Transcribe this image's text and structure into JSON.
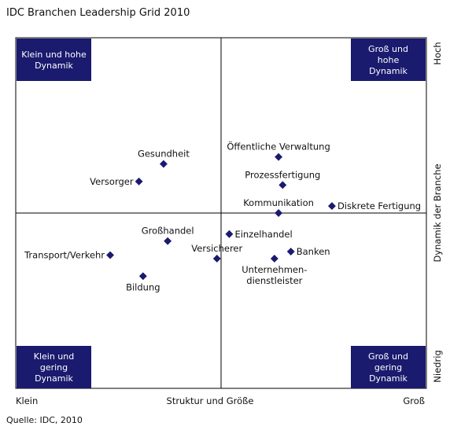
{
  "title": "IDC Branchen Leadership Grid 2010",
  "source": "Quelle: IDC, 2010",
  "colors": {
    "corner_fill": "#1a1a6e",
    "marker": "#1a1a6e",
    "frame": "#000000"
  },
  "chart_data": {
    "type": "scatter",
    "title": "IDC Branchen Leadership Grid 2010",
    "xlabel": "Struktur und Größe",
    "ylabel": "Dynamik der Branche",
    "x_ticks": {
      "min": "Klein",
      "max": "Groß"
    },
    "y_ticks": {
      "min": "Niedrig",
      "max": "Hoch"
    },
    "xlim": [
      0,
      100
    ],
    "ylim": [
      0,
      100
    ],
    "grid": false,
    "quadrant_labels": {
      "top_left": [
        "Klein und hohe",
        "Dynamik"
      ],
      "top_right": [
        "Groß und",
        "hohe",
        "Dynamik"
      ],
      "bottom_left": [
        "Klein und",
        "gering",
        "Dynamik"
      ],
      "bottom_right": [
        "Groß und",
        "gering",
        "Dynamik"
      ]
    },
    "points": [
      {
        "label": [
          "Gesundheit"
        ],
        "x": 36,
        "y": 64,
        "label_pos": "above"
      },
      {
        "label": [
          "Versorger"
        ],
        "x": 30,
        "y": 59,
        "label_pos": "left"
      },
      {
        "label": [
          "Öffentliche Verwaltung"
        ],
        "x": 64,
        "y": 66,
        "label_pos": "above"
      },
      {
        "label": [
          "Prozessfertigung"
        ],
        "x": 65,
        "y": 58,
        "label_pos": "above"
      },
      {
        "label": [
          "Kommunikation"
        ],
        "x": 64,
        "y": 50,
        "label_pos": "above"
      },
      {
        "label": [
          "Diskrete Fertigung"
        ],
        "x": 77,
        "y": 52,
        "label_pos": "right"
      },
      {
        "label": [
          "Großhandel"
        ],
        "x": 37,
        "y": 42,
        "label_pos": "above"
      },
      {
        "label": [
          "Einzelhandel"
        ],
        "x": 52,
        "y": 44,
        "label_pos": "right"
      },
      {
        "label": [
          "Transport/Verkehr"
        ],
        "x": 23,
        "y": 38,
        "label_pos": "left"
      },
      {
        "label": [
          "Versicherer"
        ],
        "x": 49,
        "y": 37,
        "label_pos": "above"
      },
      {
        "label": [
          "Banken"
        ],
        "x": 67,
        "y": 39,
        "label_pos": "right"
      },
      {
        "label": [
          "Unternehmen-",
          "dienstleister"
        ],
        "x": 63,
        "y": 37,
        "label_pos": "below"
      },
      {
        "label": [
          "Bildung"
        ],
        "x": 31,
        "y": 32,
        "label_pos": "below"
      }
    ]
  }
}
